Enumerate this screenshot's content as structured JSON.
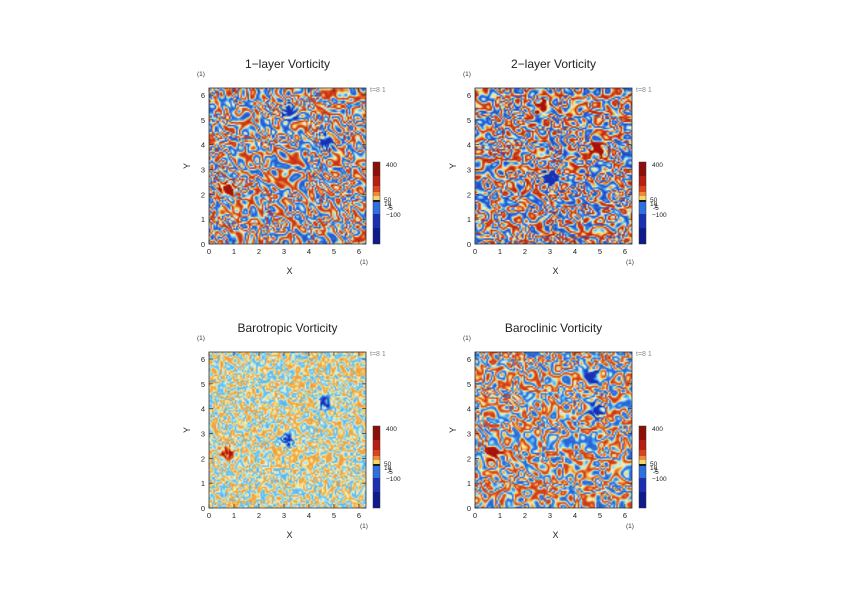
{
  "chart_data": [
    {
      "type": "heatmap",
      "title": "1−layer Vorticity",
      "xlabel": "X",
      "ylabel": "Y",
      "xunit": "(1)",
      "yunit": "(1)",
      "xlim": [
        0,
        6.283
      ],
      "ylim": [
        0,
        6.283
      ],
      "xticks": [
        "0",
        "1",
        "2",
        "3",
        "4",
        "5",
        "6"
      ],
      "yticks": [
        "0",
        "1",
        "2",
        "3",
        "4",
        "5",
        "6"
      ],
      "time_label": "t=8 1",
      "colorbar": {
        "labels": [
          "400",
          "50",
          "10",
          "1",
          "-5",
          "−100"
        ]
      },
      "pattern": {
        "seed": 11,
        "saturation": 0.95,
        "vortices": [
          {
            "x": 0.7,
            "y": 2.2,
            "sign": 1
          },
          {
            "x": 4.7,
            "y": 4.1,
            "sign": -1
          },
          {
            "x": 3.2,
            "y": 5.3,
            "sign": -1
          }
        ]
      }
    },
    {
      "type": "heatmap",
      "title": "2−layer Vorticity",
      "xlabel": "X",
      "ylabel": "Y",
      "xunit": "(1)",
      "yunit": "(1)",
      "xlim": [
        0,
        6.283
      ],
      "ylim": [
        0,
        6.283
      ],
      "xticks": [
        "0",
        "1",
        "2",
        "3",
        "4",
        "5",
        "6"
      ],
      "yticks": [
        "0",
        "1",
        "2",
        "3",
        "4",
        "5",
        "6"
      ],
      "time_label": "t=8 1",
      "colorbar": {
        "labels": [
          "400",
          "50",
          "10",
          "1",
          "-5",
          "−100"
        ]
      },
      "pattern": {
        "seed": 23,
        "saturation": 1.0,
        "vortices": [
          {
            "x": 3.0,
            "y": 2.6,
            "sign": -1
          },
          {
            "x": 4.9,
            "y": 3.8,
            "sign": 1
          },
          {
            "x": 2.7,
            "y": 5.5,
            "sign": 1
          }
        ]
      }
    },
    {
      "type": "heatmap",
      "title": "Barotropic Vorticity",
      "xlabel": "X",
      "ylabel": "Y",
      "xunit": "(1)",
      "yunit": "(1)",
      "xlim": [
        0,
        6.283
      ],
      "ylim": [
        0,
        6.283
      ],
      "xticks": [
        "0",
        "1",
        "2",
        "3",
        "4",
        "5",
        "6"
      ],
      "yticks": [
        "0",
        "1",
        "2",
        "3",
        "4",
        "5",
        "6"
      ],
      "time_label": "t=8 1",
      "colorbar": {
        "labels": [
          "400",
          "50",
          "10",
          "1",
          "-5",
          "−100"
        ]
      },
      "pattern": {
        "seed": 37,
        "saturation": 0.55,
        "vortices": [
          {
            "x": 0.7,
            "y": 2.2,
            "sign": 1
          },
          {
            "x": 3.1,
            "y": 2.7,
            "sign": -1
          },
          {
            "x": 4.6,
            "y": 4.2,
            "sign": -1
          }
        ]
      }
    },
    {
      "type": "heatmap",
      "title": "Baroclinic Vorticity",
      "xlabel": "X",
      "ylabel": "Y",
      "xunit": "(1)",
      "yunit": "(1)",
      "xlim": [
        0,
        6.283
      ],
      "ylim": [
        0,
        6.283
      ],
      "xticks": [
        "0",
        "1",
        "2",
        "3",
        "4",
        "5",
        "6"
      ],
      "yticks": [
        "0",
        "1",
        "2",
        "3",
        "4",
        "5",
        "6"
      ],
      "time_label": "t=8 1",
      "colorbar": {
        "labels": [
          "400",
          "50",
          "10",
          "1",
          "-5",
          "−100"
        ]
      },
      "pattern": {
        "seed": 53,
        "saturation": 0.9,
        "vortices": [
          {
            "x": 0.7,
            "y": 2.2,
            "sign": 1
          },
          {
            "x": 4.8,
            "y": 3.9,
            "sign": -1
          },
          {
            "x": 4.7,
            "y": 5.3,
            "sign": -1
          }
        ]
      }
    }
  ],
  "colormap": [
    "#1a2fb3",
    "#2f6fe0",
    "#54b5f0",
    "#a8e6f5",
    "#f8f2c4",
    "#f4d66a",
    "#f09a3e",
    "#d8441f",
    "#a8120d"
  ],
  "colorbar_colors": [
    "#8c0f0a",
    "#b81e12",
    "#d8441f",
    "#f08a3a",
    "#f4d66a",
    "#1a1a1a",
    "#2f6fe0",
    "#1a2fb3",
    "#0f1a8c"
  ]
}
